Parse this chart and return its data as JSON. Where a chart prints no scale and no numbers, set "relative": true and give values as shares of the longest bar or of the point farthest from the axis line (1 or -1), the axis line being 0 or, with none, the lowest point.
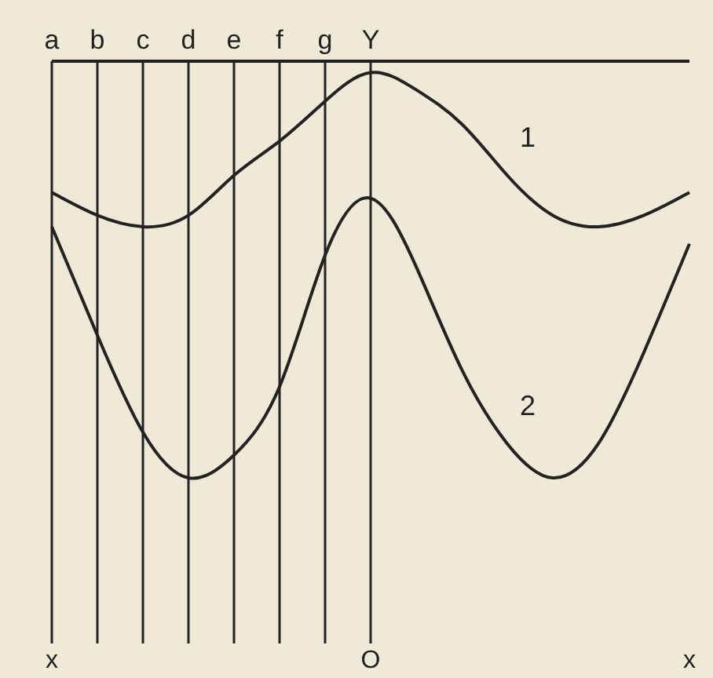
{
  "chart_data": {
    "type": "line",
    "relative": true,
    "marker": "none",
    "line_style": "solid",
    "categories": [
      "a",
      "b",
      "c",
      "d",
      "e",
      "f",
      "g",
      "Y",
      null,
      null,
      null,
      null,
      null,
      null,
      null
    ],
    "series": [
      {
        "name": "1",
        "color": "#222222",
        "values": [
          0.79,
          0.75,
          0.73,
          0.75,
          0.82,
          0.88,
          0.95,
          1.0,
          0.97,
          0.91,
          0.82,
          0.75,
          0.73,
          0.75,
          0.79
        ]
      },
      {
        "name": "2",
        "color": "#222222",
        "values": [
          0.73,
          0.54,
          0.37,
          0.29,
          0.33,
          0.45,
          0.68,
          0.78,
          0.66,
          0.48,
          0.35,
          0.29,
          0.35,
          0.51,
          0.7
        ]
      }
    ],
    "ref_lines": [
      {
        "axis": "x",
        "value": "a",
        "color": "#222222"
      },
      {
        "axis": "x",
        "value": "b",
        "color": "#222222"
      },
      {
        "axis": "x",
        "value": "c",
        "color": "#222222"
      },
      {
        "axis": "x",
        "value": "d",
        "color": "#222222"
      },
      {
        "axis": "x",
        "value": "e",
        "color": "#222222"
      },
      {
        "axis": "x",
        "value": "f",
        "color": "#222222"
      },
      {
        "axis": "x",
        "value": "g",
        "color": "#222222"
      },
      {
        "axis": "x",
        "value": "Y",
        "color": "#222222"
      }
    ],
    "annotations": [
      "x",
      "O",
      "x"
    ]
  }
}
